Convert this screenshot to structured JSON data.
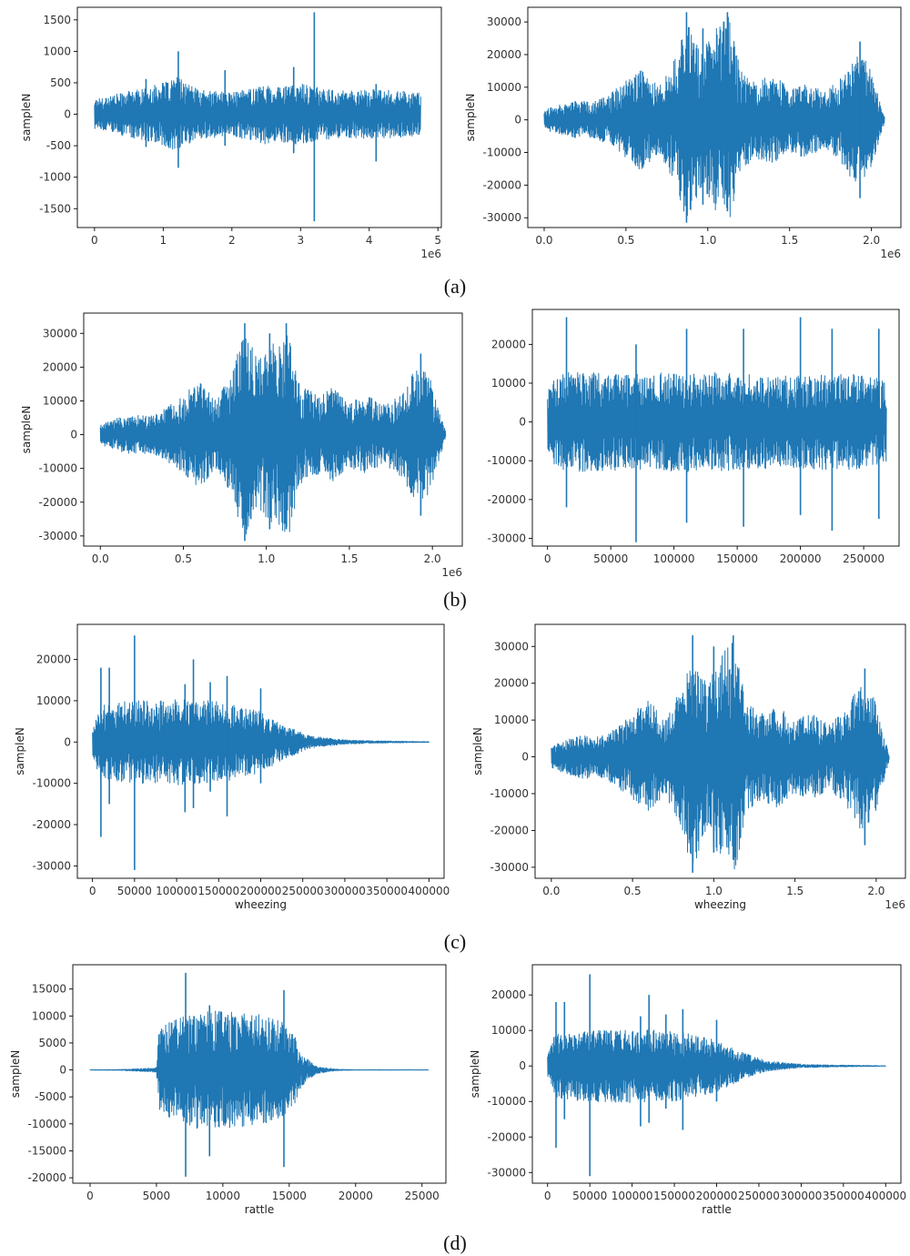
{
  "figure": {
    "captions": [
      "(a)",
      "(b)",
      "(c)",
      "(d)"
    ]
  },
  "colors": {
    "line": "#1f77b4",
    "frame": "#000000",
    "text": "#333333"
  },
  "chart_data": [
    {
      "id": "a-left",
      "type": "line",
      "row": 0,
      "col": 0,
      "ylabel": "sampleN",
      "xlabel": "",
      "offset_text": "1e6",
      "xlim": [
        -0.25,
        5.05
      ],
      "ylim": [
        -1800,
        1700
      ],
      "x_ticks": [
        0,
        1,
        2,
        3,
        4,
        5
      ],
      "x_tick_labels": [
        "0",
        "1",
        "2",
        "3",
        "4",
        "5"
      ],
      "y_ticks": [
        -1500,
        -1000,
        -500,
        0,
        500,
        1000,
        1500
      ],
      "y_tick_labels": [
        "-1500",
        "-1000",
        "-500",
        "0",
        "500",
        "1000",
        "1500"
      ],
      "x_end": 4.75,
      "envelope": [
        [
          0,
          250
        ],
        [
          0.3,
          320
        ],
        [
          0.7,
          420
        ],
        [
          1.0,
          500
        ],
        [
          1.2,
          600
        ],
        [
          1.5,
          400
        ],
        [
          2.0,
          350
        ],
        [
          2.5,
          480
        ],
        [
          2.8,
          450
        ],
        [
          3.0,
          500
        ],
        [
          3.3,
          420
        ],
        [
          3.6,
          380
        ],
        [
          4.0,
          400
        ],
        [
          4.4,
          380
        ],
        [
          4.75,
          350
        ]
      ],
      "spikes": [
        [
          1.22,
          1000,
          -850
        ],
        [
          3.2,
          1620,
          -1700
        ],
        [
          2.9,
          750,
          -620
        ],
        [
          1.9,
          700,
          -500
        ],
        [
          4.1,
          480,
          -750
        ],
        [
          0.75,
          560,
          -520
        ]
      ]
    },
    {
      "id": "a-right",
      "type": "line",
      "row": 0,
      "col": 1,
      "ylabel": "sampleN",
      "xlabel": "",
      "offset_text": "1e6",
      "xlim": [
        -0.1,
        2.18
      ],
      "ylim": [
        -33000,
        34500
      ],
      "x_ticks": [
        0,
        0.5,
        1.0,
        1.5,
        2.0
      ],
      "x_tick_labels": [
        "0.0",
        "0.5",
        "1.0",
        "1.5",
        "2.0"
      ],
      "y_ticks": [
        -30000,
        -20000,
        -10000,
        0,
        10000,
        20000,
        30000
      ],
      "y_tick_labels": [
        "-30000",
        "-20000",
        "-10000",
        "0",
        "10000",
        "20000",
        "30000"
      ],
      "x_end": 2.08,
      "envelope": [
        [
          0,
          3000
        ],
        [
          0.1,
          5000
        ],
        [
          0.2,
          6000
        ],
        [
          0.3,
          5500
        ],
        [
          0.4,
          8000
        ],
        [
          0.5,
          12000
        ],
        [
          0.6,
          16000
        ],
        [
          0.7,
          10000
        ],
        [
          0.8,
          20000
        ],
        [
          0.87,
          31000
        ],
        [
          0.95,
          22000
        ],
        [
          1.05,
          28000
        ],
        [
          1.13,
          32000
        ],
        [
          1.2,
          15000
        ],
        [
          1.3,
          12000
        ],
        [
          1.4,
          14000
        ],
        [
          1.5,
          10000
        ],
        [
          1.6,
          12000
        ],
        [
          1.7,
          9000
        ],
        [
          1.8,
          12000
        ],
        [
          1.9,
          20000
        ],
        [
          1.98,
          18000
        ],
        [
          2.05,
          6000
        ],
        [
          2.08,
          1000
        ]
      ],
      "spikes": [
        [
          0.87,
          33000,
          -31500
        ],
        [
          1.12,
          33000,
          -28000
        ],
        [
          0.97,
          28000,
          -26000
        ],
        [
          1.93,
          24000,
          -24000
        ]
      ]
    },
    {
      "id": "b-left",
      "type": "line",
      "row": 1,
      "col": 0,
      "ylabel": "sampleN",
      "xlabel": "",
      "offset_text": "1e6",
      "xlim": [
        -0.1,
        2.18
      ],
      "ylim": [
        -33000,
        36000
      ],
      "x_ticks": [
        0,
        0.5,
        1.0,
        1.5,
        2.0
      ],
      "x_tick_labels": [
        "0.0",
        "0.5",
        "1.0",
        "1.5",
        "2.0"
      ],
      "y_ticks": [
        -30000,
        -20000,
        -10000,
        0,
        10000,
        20000,
        30000
      ],
      "y_tick_labels": [
        "-30000",
        "-20000",
        "-10000",
        "0",
        "10000",
        "20000",
        "30000"
      ],
      "x_end": 2.08,
      "envelope": [
        [
          0,
          3000
        ],
        [
          0.1,
          5000
        ],
        [
          0.2,
          6000
        ],
        [
          0.3,
          5500
        ],
        [
          0.4,
          8000
        ],
        [
          0.5,
          12000
        ],
        [
          0.6,
          16000
        ],
        [
          0.7,
          10000
        ],
        [
          0.8,
          20000
        ],
        [
          0.87,
          31000
        ],
        [
          0.95,
          22000
        ],
        [
          1.05,
          28000
        ],
        [
          1.13,
          32000
        ],
        [
          1.2,
          15000
        ],
        [
          1.3,
          12000
        ],
        [
          1.4,
          14000
        ],
        [
          1.5,
          10000
        ],
        [
          1.6,
          12000
        ],
        [
          1.7,
          9000
        ],
        [
          1.8,
          12000
        ],
        [
          1.9,
          20000
        ],
        [
          1.98,
          18000
        ],
        [
          2.05,
          6000
        ],
        [
          2.08,
          1000
        ]
      ],
      "spikes": [
        [
          0.87,
          33000,
          -31500
        ],
        [
          1.02,
          30000,
          -28000
        ],
        [
          1.12,
          33000,
          -28000
        ],
        [
          1.93,
          24000,
          -24000
        ]
      ]
    },
    {
      "id": "b-right",
      "type": "line",
      "row": 1,
      "col": 1,
      "ylabel": "",
      "xlabel": "",
      "offset_text": "",
      "xlim": [
        -12000,
        278000
      ],
      "ylim": [
        -32000,
        29000
      ],
      "x_ticks": [
        0,
        50000,
        100000,
        150000,
        200000,
        250000
      ],
      "x_tick_labels": [
        "0",
        "50000",
        "100000",
        "150000",
        "200000",
        "250000"
      ],
      "y_ticks": [
        -30000,
        -20000,
        -10000,
        0,
        10000,
        20000
      ],
      "y_tick_labels": [
        "-30000",
        "-20000",
        "-10000",
        "0",
        "10000",
        "20000"
      ],
      "x_end": 268000,
      "envelope": [
        [
          0,
          8000
        ],
        [
          5000,
          11000
        ],
        [
          15000,
          13000
        ],
        [
          60000,
          12500
        ],
        [
          120000,
          13000
        ],
        [
          180000,
          12000
        ],
        [
          240000,
          12500
        ],
        [
          268000,
          11000
        ]
      ],
      "spikes": [
        [
          15000,
          27000,
          -22000
        ],
        [
          70000,
          20000,
          -31000
        ],
        [
          110000,
          24000,
          -26000
        ],
        [
          155000,
          24000,
          -27000
        ],
        [
          200000,
          27000,
          -24000
        ],
        [
          225000,
          24000,
          -28000
        ],
        [
          262000,
          24000,
          -25000
        ]
      ]
    },
    {
      "id": "c-left",
      "type": "line",
      "row": 2,
      "col": 0,
      "ylabel": "sampleN",
      "xlabel": "wheezing",
      "offset_text": "",
      "xlim": [
        -18000,
        418000
      ],
      "ylim": [
        -33000,
        28500
      ],
      "x_ticks": [
        0,
        50000,
        100000,
        150000,
        200000,
        250000,
        300000,
        350000,
        400000
      ],
      "x_tick_labels": [
        "0",
        "50000",
        "100000",
        "150000",
        "200000",
        "250000",
        "300000",
        "350000",
        "400000"
      ],
      "y_ticks": [
        -30000,
        -20000,
        -10000,
        0,
        10000,
        20000
      ],
      "y_tick_labels": [
        "-30000",
        "-20000",
        "-10000",
        "0",
        "10000",
        "20000"
      ],
      "x_end": 400000,
      "envelope": [
        [
          0,
          3000
        ],
        [
          8000,
          9000
        ],
        [
          40000,
          10000
        ],
        [
          100000,
          10500
        ],
        [
          150000,
          10000
        ],
        [
          200000,
          7500
        ],
        [
          230000,
          4000
        ],
        [
          260000,
          1500
        ],
        [
          300000,
          600
        ],
        [
          330000,
          400
        ],
        [
          400000,
          150
        ]
      ],
      "spikes": [
        [
          10000,
          18000,
          -23000
        ],
        [
          20000,
          18000,
          -15000
        ],
        [
          50000,
          25800,
          -31000
        ],
        [
          110000,
          14000,
          -17000
        ],
        [
          120000,
          20000,
          -16000
        ],
        [
          140000,
          14500,
          -12000
        ],
        [
          160000,
          16000,
          -18000
        ],
        [
          200000,
          13000,
          -10000
        ]
      ]
    },
    {
      "id": "c-right",
      "type": "line",
      "row": 2,
      "col": 1,
      "ylabel": "sampleN",
      "xlabel": "wheezing",
      "offset_text": "1e6",
      "xlim": [
        -0.1,
        2.18
      ],
      "ylim": [
        -33000,
        36000
      ],
      "x_ticks": [
        0,
        0.5,
        1.0,
        1.5,
        2.0
      ],
      "x_tick_labels": [
        "0.0",
        "0.5",
        "1.0",
        "1.5",
        "2.0"
      ],
      "y_ticks": [
        -30000,
        -20000,
        -10000,
        0,
        10000,
        20000,
        30000
      ],
      "y_tick_labels": [
        "-30000",
        "-20000",
        "-10000",
        "0",
        "10000",
        "20000",
        "30000"
      ],
      "x_end": 2.08,
      "envelope": [
        [
          0,
          3000
        ],
        [
          0.1,
          5000
        ],
        [
          0.2,
          6000
        ],
        [
          0.3,
          5500
        ],
        [
          0.4,
          8000
        ],
        [
          0.5,
          12000
        ],
        [
          0.6,
          16000
        ],
        [
          0.7,
          10000
        ],
        [
          0.8,
          20000
        ],
        [
          0.87,
          31000
        ],
        [
          0.95,
          22000
        ],
        [
          1.05,
          28000
        ],
        [
          1.13,
          32000
        ],
        [
          1.2,
          15000
        ],
        [
          1.3,
          12000
        ],
        [
          1.4,
          14000
        ],
        [
          1.5,
          10000
        ],
        [
          1.6,
          12000
        ],
        [
          1.7,
          9000
        ],
        [
          1.8,
          12000
        ],
        [
          1.9,
          20000
        ],
        [
          1.98,
          18000
        ],
        [
          2.05,
          6000
        ],
        [
          2.08,
          1000
        ]
      ],
      "spikes": [
        [
          0.87,
          33000,
          -31500
        ],
        [
          1.12,
          33000,
          -28000
        ],
        [
          1.0,
          30000,
          -26000
        ],
        [
          1.93,
          24000,
          -24000
        ]
      ]
    },
    {
      "id": "d-left",
      "type": "line",
      "row": 3,
      "col": 0,
      "ylabel": "sampleN",
      "xlabel": "rattle",
      "offset_text": "",
      "xlim": [
        -1300,
        26800
      ],
      "ylim": [
        -21000,
        19500
      ],
      "x_ticks": [
        0,
        5000,
        10000,
        15000,
        20000,
        25000
      ],
      "x_tick_labels": [
        "0",
        "5000",
        "10000",
        "15000",
        "20000",
        "25000"
      ],
      "y_ticks": [
        -20000,
        -15000,
        -10000,
        -5000,
        0,
        5000,
        10000,
        15000
      ],
      "y_tick_labels": [
        "-20000",
        "-15000",
        "-10000",
        "-5000",
        "0",
        "5000",
        "10000",
        "15000"
      ],
      "x_end": 25500,
      "envelope": [
        [
          0,
          80
        ],
        [
          2000,
          120
        ],
        [
          4500,
          400
        ],
        [
          5000,
          500
        ],
        [
          5200,
          8000
        ],
        [
          6500,
          9500
        ],
        [
          8000,
          11000
        ],
        [
          10000,
          11000
        ],
        [
          12500,
          10500
        ],
        [
          14500,
          9000
        ],
        [
          15500,
          6000
        ],
        [
          16000,
          3000
        ],
        [
          17000,
          800
        ],
        [
          18500,
          200
        ],
        [
          20000,
          80
        ],
        [
          25500,
          60
        ]
      ],
      "spikes": [
        [
          7200,
          18000,
          -19800
        ],
        [
          14600,
          14800,
          -18000
        ],
        [
          9000,
          12000,
          -16000
        ]
      ]
    },
    {
      "id": "d-right",
      "type": "line",
      "row": 3,
      "col": 1,
      "ylabel": "sampleN",
      "xlabel": "rattle",
      "offset_text": "",
      "xlim": [
        -18000,
        418000
      ],
      "ylim": [
        -33000,
        28500
      ],
      "x_ticks": [
        0,
        50000,
        100000,
        150000,
        200000,
        250000,
        300000,
        350000,
        400000
      ],
      "x_tick_labels": [
        "0",
        "50000",
        "100000",
        "150000",
        "200000",
        "250000",
        "300000",
        "350000",
        "400000"
      ],
      "y_ticks": [
        -30000,
        -20000,
        -10000,
        0,
        10000,
        20000
      ],
      "y_tick_labels": [
        "-30000",
        "-20000",
        "-10000",
        "0",
        "10000",
        "20000"
      ],
      "x_end": 400000,
      "envelope": [
        [
          0,
          3000
        ],
        [
          8000,
          9000
        ],
        [
          40000,
          10000
        ],
        [
          100000,
          10500
        ],
        [
          150000,
          10000
        ],
        [
          200000,
          7500
        ],
        [
          230000,
          4000
        ],
        [
          260000,
          1500
        ],
        [
          300000,
          600
        ],
        [
          330000,
          400
        ],
        [
          400000,
          150
        ]
      ],
      "spikes": [
        [
          10000,
          18000,
          -23000
        ],
        [
          20000,
          18000,
          -15000
        ],
        [
          50000,
          25800,
          -31000
        ],
        [
          110000,
          14000,
          -17000
        ],
        [
          120000,
          20000,
          -16000
        ],
        [
          140000,
          14500,
          -12000
        ],
        [
          160000,
          16000,
          -18000
        ],
        [
          200000,
          13000,
          -10000
        ]
      ]
    }
  ]
}
